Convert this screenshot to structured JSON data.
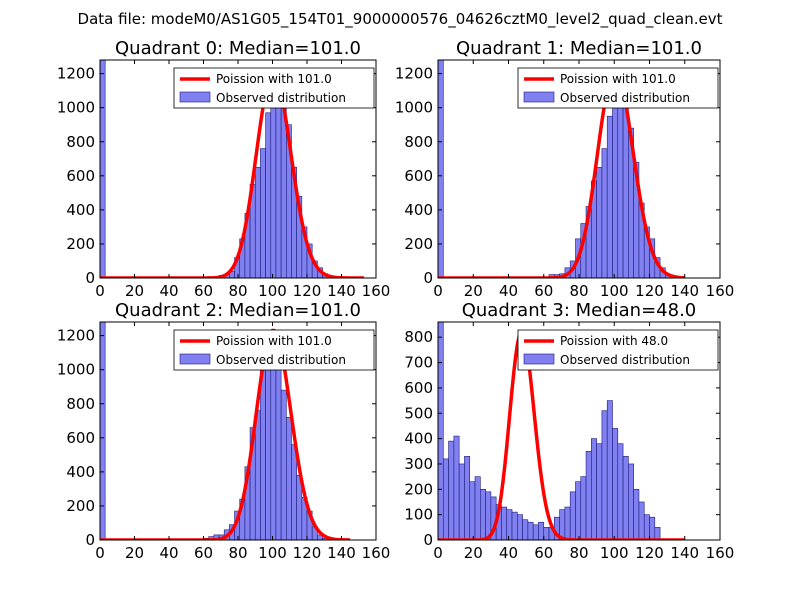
{
  "figure": {
    "suptitle": "Data file: modeM0/AS1G05_154T01_9000000576_04626cztM0_level2_quad_clean.evt"
  },
  "colors": {
    "bar_fill": "#8080f0",
    "bar_edge": "#1c1c7c",
    "line": "#ff0000",
    "axes": "#000000"
  },
  "chart_data": [
    {
      "type": "bar",
      "title": "Quadrant 0: Median=101.0",
      "xlim": [
        0,
        160
      ],
      "ylim": [
        0,
        1280
      ],
      "xticks": [
        0,
        20,
        40,
        60,
        80,
        100,
        120,
        140,
        160
      ],
      "yticks": [
        0,
        200,
        400,
        600,
        800,
        1000,
        1200
      ],
      "legend": {
        "location": "top-right",
        "line_label": "Poission with 101.0",
        "bar_label": "Observed distribution"
      },
      "histogram": {
        "bin_width": 3,
        "bins": [
          [
            0,
            1280
          ],
          [
            66,
            10
          ],
          [
            69,
            15
          ],
          [
            72,
            20
          ],
          [
            75,
            40
          ],
          [
            78,
            120
          ],
          [
            81,
            230
          ],
          [
            84,
            380
          ],
          [
            87,
            550
          ],
          [
            90,
            650
          ],
          [
            93,
            760
          ],
          [
            96,
            970
          ],
          [
            99,
            1220
          ],
          [
            102,
            1150
          ],
          [
            105,
            1000
          ],
          [
            108,
            900
          ],
          [
            111,
            650
          ],
          [
            114,
            480
          ],
          [
            117,
            300
          ],
          [
            120,
            200
          ],
          [
            123,
            100
          ],
          [
            126,
            60
          ],
          [
            129,
            25
          ],
          [
            132,
            10
          ],
          [
            135,
            5
          ]
        ]
      },
      "poisson": {
        "mean": 101.0,
        "x_range": [
          0,
          153
        ],
        "peak": 1200
      }
    },
    {
      "type": "bar",
      "title": "Quadrant 1: Median=101.0",
      "xlim": [
        0,
        160
      ],
      "ylim": [
        0,
        1280
      ],
      "xticks": [
        0,
        20,
        40,
        60,
        80,
        100,
        120,
        140,
        160
      ],
      "yticks": [
        0,
        200,
        400,
        600,
        800,
        1000,
        1200
      ],
      "legend": {
        "location": "top-right",
        "line_label": "Poission with 101.0",
        "bar_label": "Observed distribution"
      },
      "histogram": {
        "bin_width": 3,
        "bins": [
          [
            0,
            1280
          ],
          [
            63,
            20
          ],
          [
            66,
            20
          ],
          [
            69,
            25
          ],
          [
            72,
            60
          ],
          [
            75,
            100
          ],
          [
            78,
            230
          ],
          [
            81,
            320
          ],
          [
            84,
            420
          ],
          [
            87,
            570
          ],
          [
            90,
            650
          ],
          [
            93,
            760
          ],
          [
            96,
            950
          ],
          [
            99,
            1150
          ],
          [
            102,
            1220
          ],
          [
            105,
            1080
          ],
          [
            108,
            880
          ],
          [
            111,
            680
          ],
          [
            114,
            440
          ],
          [
            117,
            300
          ],
          [
            120,
            230
          ],
          [
            123,
            120
          ],
          [
            126,
            60
          ],
          [
            129,
            20
          ]
        ]
      },
      "poisson": {
        "mean": 101.0,
        "x_range": [
          0,
          140
        ],
        "peak": 1220
      }
    },
    {
      "type": "bar",
      "title": "Quadrant 2: Median=101.0",
      "xlim": [
        0,
        160
      ],
      "ylim": [
        0,
        1280
      ],
      "xticks": [
        0,
        20,
        40,
        60,
        80,
        100,
        120,
        140,
        160
      ],
      "yticks": [
        0,
        200,
        400,
        600,
        800,
        1000,
        1200
      ],
      "legend": {
        "location": "top-right",
        "line_label": "Poission with 101.0",
        "bar_label": "Observed distribution"
      },
      "histogram": {
        "bin_width": 3,
        "bins": [
          [
            0,
            1280
          ],
          [
            60,
            10
          ],
          [
            63,
            20
          ],
          [
            66,
            30
          ],
          [
            69,
            30
          ],
          [
            72,
            60
          ],
          [
            75,
            90
          ],
          [
            78,
            170
          ],
          [
            81,
            240
          ],
          [
            84,
            430
          ],
          [
            87,
            660
          ],
          [
            90,
            760
          ],
          [
            93,
            1000
          ],
          [
            96,
            1120
          ],
          [
            99,
            1210
          ],
          [
            102,
            1070
          ],
          [
            105,
            880
          ],
          [
            108,
            720
          ],
          [
            111,
            560
          ],
          [
            114,
            380
          ],
          [
            117,
            250
          ],
          [
            120,
            170
          ],
          [
            123,
            80
          ],
          [
            126,
            30
          ],
          [
            129,
            10
          ]
        ]
      },
      "poisson": {
        "mean": 101.0,
        "x_range": [
          0,
          145
        ],
        "peak": 1230
      }
    },
    {
      "type": "bar",
      "title": "Quadrant 3: Median=48.0",
      "xlim": [
        0,
        160
      ],
      "ylim": [
        0,
        860
      ],
      "xticks": [
        0,
        20,
        40,
        60,
        80,
        100,
        120,
        140,
        160
      ],
      "yticks": [
        0,
        100,
        200,
        300,
        400,
        500,
        600,
        700,
        800
      ],
      "legend": {
        "location": "top-right",
        "line_label": "Poission with 48.0",
        "bar_label": "Observed distribution"
      },
      "histogram": {
        "bin_width": 3,
        "bins": [
          [
            0,
            860
          ],
          [
            3,
            320
          ],
          [
            6,
            390
          ],
          [
            9,
            410
          ],
          [
            12,
            300
          ],
          [
            15,
            330
          ],
          [
            18,
            230
          ],
          [
            21,
            250
          ],
          [
            24,
            200
          ],
          [
            27,
            190
          ],
          [
            30,
            170
          ],
          [
            33,
            140
          ],
          [
            36,
            130
          ],
          [
            39,
            120
          ],
          [
            42,
            110
          ],
          [
            45,
            100
          ],
          [
            48,
            80
          ],
          [
            51,
            70
          ],
          [
            54,
            60
          ],
          [
            57,
            70
          ],
          [
            60,
            50
          ],
          [
            63,
            50
          ],
          [
            66,
            90
          ],
          [
            69,
            120
          ],
          [
            72,
            130
          ],
          [
            75,
            190
          ],
          [
            78,
            230
          ],
          [
            81,
            250
          ],
          [
            84,
            350
          ],
          [
            87,
            400
          ],
          [
            90,
            380
          ],
          [
            93,
            510
          ],
          [
            96,
            550
          ],
          [
            99,
            440
          ],
          [
            102,
            380
          ],
          [
            105,
            330
          ],
          [
            108,
            300
          ],
          [
            111,
            200
          ],
          [
            114,
            150
          ],
          [
            117,
            100
          ],
          [
            120,
            90
          ],
          [
            123,
            50
          ]
        ]
      },
      "poisson": {
        "mean": 48.0,
        "x_range": [
          0,
          140
        ],
        "peak": 820
      }
    }
  ]
}
